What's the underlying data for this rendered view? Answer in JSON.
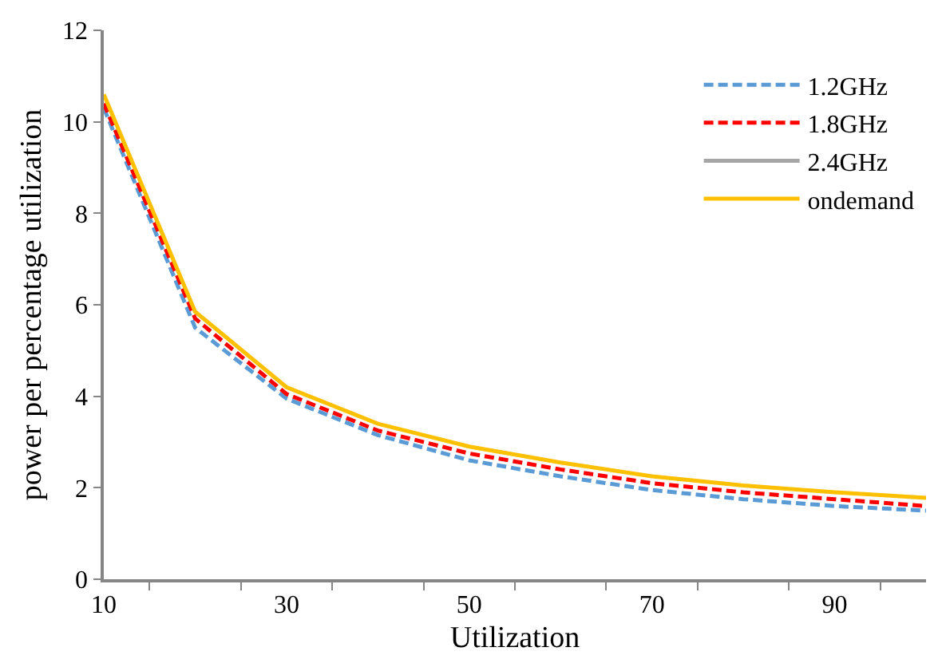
{
  "chart_data": {
    "type": "line",
    "xlabel": "Utilization",
    "ylabel": "power per percentage utilization",
    "categories": [
      "10",
      null,
      "30",
      null,
      "50",
      null,
      "70",
      null,
      "90",
      null
    ],
    "ylim": [
      0,
      12
    ],
    "yticks": [
      0,
      2,
      4,
      6,
      8,
      10,
      12
    ],
    "grid": false,
    "legend": "top right",
    "series": [
      {
        "name": "1.2GHz",
        "color": "#5b9bd5",
        "line_style": "dashed",
        "values": [
          10.3,
          5.5,
          3.95,
          3.15,
          2.6,
          2.25,
          1.95,
          1.75,
          1.6,
          1.5
        ]
      },
      {
        "name": "1.8GHz",
        "color": "#ff0000",
        "line_style": "dashed",
        "values": [
          10.4,
          5.7,
          4.05,
          3.25,
          2.75,
          2.4,
          2.1,
          1.9,
          1.75,
          1.6
        ]
      },
      {
        "name": "2.4GHz",
        "color": "#a5a5a5",
        "line_style": "solid",
        "values": [
          null,
          null,
          null,
          null,
          null,
          null,
          null,
          null,
          null,
          null
        ]
      },
      {
        "name": "ondemand",
        "color": "#ffc000",
        "line_style": "solid",
        "values": [
          10.6,
          5.85,
          4.2,
          3.4,
          2.9,
          2.55,
          2.25,
          2.05,
          1.9,
          1.78
        ]
      }
    ]
  }
}
